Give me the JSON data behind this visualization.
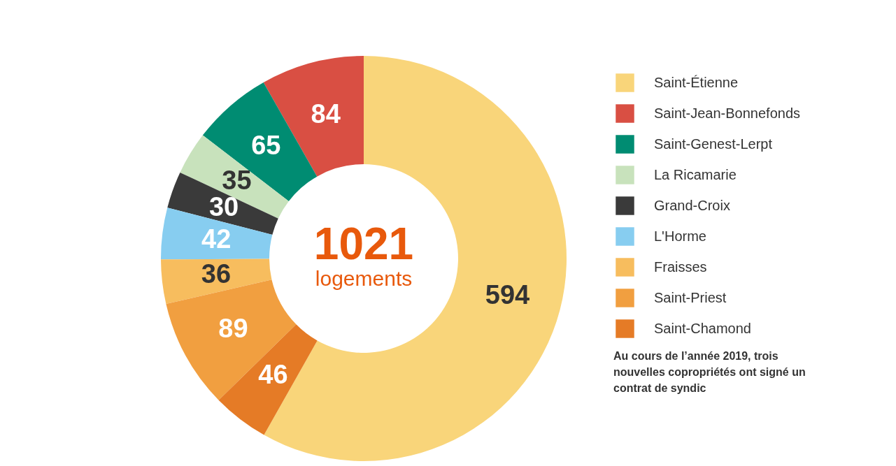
{
  "chart_data": {
    "type": "donut",
    "categories": [
      "Saint-Étienne",
      "Saint-Jean-Bonnefonds",
      "Saint-Genest-Lerpt",
      "La Ricamarie",
      "Grand-Croix",
      "L'Horme",
      "Fraisses",
      "Saint-Priest",
      "Saint-Chamond"
    ],
    "values": [
      594,
      84,
      65,
      35,
      30,
      42,
      36,
      89,
      46
    ],
    "colors": [
      "#f9d57a",
      "#d94f43",
      "#008c72",
      "#c8e2bc",
      "#3a3a3a",
      "#87cdf0",
      "#f7bd5e",
      "#f19f40",
      "#e57b26"
    ],
    "data_labels": true,
    "legend": "right",
    "annotations": [
      "1021",
      "logements",
      "Au cours de l’année 2019, trois nouvelles copropriétés ont signé un contrat de syndic"
    ]
  }
}
